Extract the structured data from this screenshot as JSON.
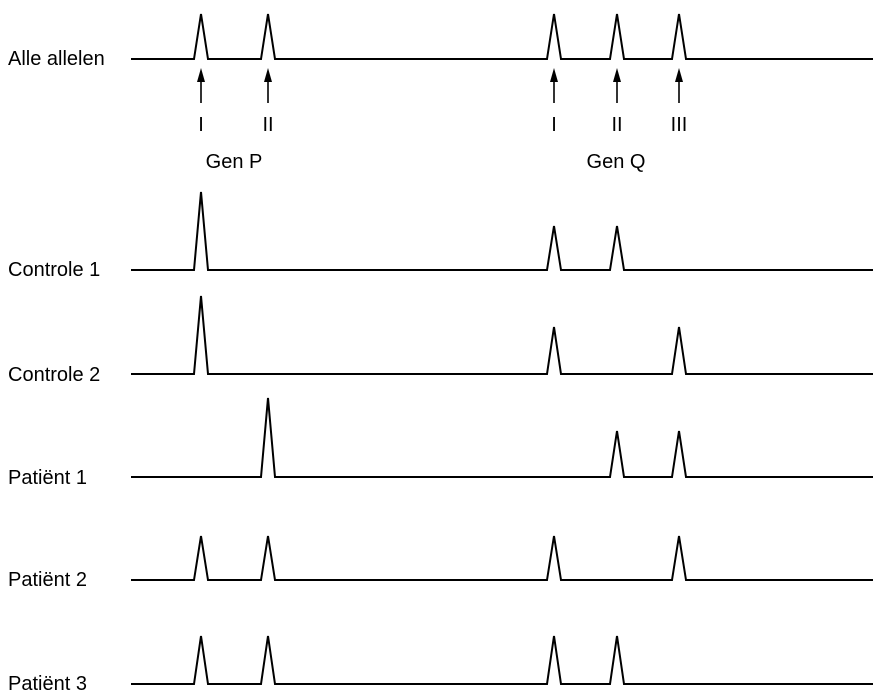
{
  "rows": [
    {
      "label": "Alle allelen",
      "peaks": {
        "P": [
          "I",
          "II"
        ],
        "Q": [
          "I",
          "II",
          "III"
        ]
      }
    },
    {
      "label": "Controle 1",
      "peaks": {
        "P": [
          "I"
        ],
        "Q": [
          "I",
          "II"
        ]
      }
    },
    {
      "label": "Controle 2",
      "peaks": {
        "P": [
          "I"
        ],
        "Q": [
          "I",
          "III"
        ]
      }
    },
    {
      "label": "Patiënt 1",
      "peaks": {
        "P": [
          "II"
        ],
        "Q": [
          "II",
          "III"
        ]
      }
    },
    {
      "label": "Patiënt 2",
      "peaks": {
        "P": [
          "I",
          "II"
        ],
        "Q": [
          "I",
          "III"
        ]
      }
    },
    {
      "label": "Patiënt 3",
      "peaks": {
        "P": [
          "I",
          "II"
        ],
        "Q": [
          "I",
          "II"
        ]
      }
    }
  ],
  "genes": [
    {
      "name": "Gen P",
      "alleles": [
        "I",
        "II"
      ]
    },
    {
      "name": "Gen Q",
      "alleles": [
        "I",
        "II",
        "III"
      ]
    }
  ]
}
